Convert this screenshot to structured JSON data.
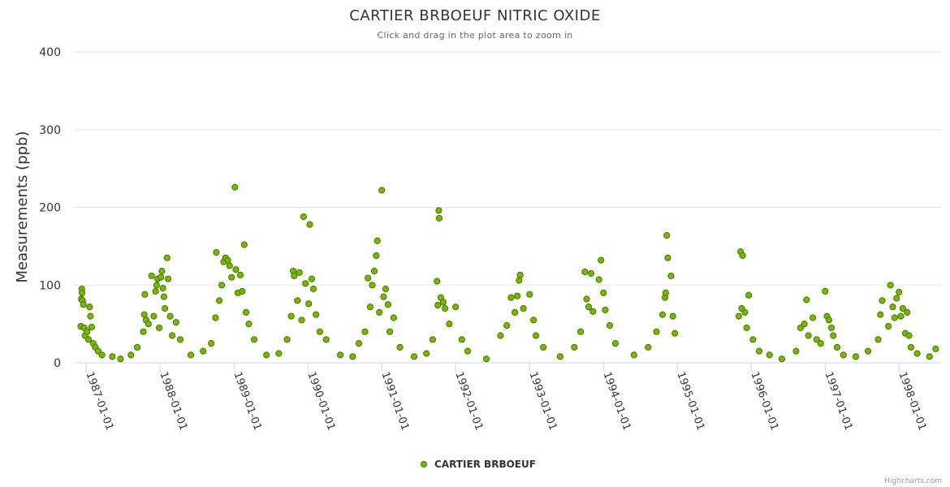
{
  "chart_data": {
    "type": "scatter",
    "title": "CARTIER BRBOEUF NITRIC OXIDE",
    "subtitle": "Click and drag in the plot area to zoom in",
    "ylabel": "Measurements (ppb)",
    "ylim": [
      0,
      400
    ],
    "yticks": [
      "0",
      "100",
      "200",
      "300",
      "400"
    ],
    "xlim": [
      "1986-11-01",
      "1998-08-01"
    ],
    "xticks": [
      "1987-01-01",
      "1988-01-01",
      "1989-01-01",
      "1990-01-01",
      "1991-01-01",
      "1992-01-01",
      "1993-01-01",
      "1994-01-01",
      "1995-01-01",
      "1996-01-01",
      "1997-01-01",
      "1998-01-01"
    ],
    "grid": true,
    "legend": "bottom-center",
    "credits": "Highcharts.com",
    "colors": {
      "marker_fill": "#7cb500",
      "marker_stroke": "#3f7a00"
    },
    "series": [
      {
        "name": "CARTIER BRBOEUF",
        "points": [
          [
            "1986-12-05",
            47
          ],
          [
            "1986-12-08",
            82
          ],
          [
            "1986-12-10",
            95
          ],
          [
            "1986-12-11",
            90
          ],
          [
            "1986-12-14",
            80
          ],
          [
            "1986-12-18",
            75
          ],
          [
            "1986-12-22",
            45
          ],
          [
            "1986-12-26",
            35
          ],
          [
            "1987-01-05",
            40
          ],
          [
            "1987-01-12",
            30
          ],
          [
            "1987-01-18",
            72
          ],
          [
            "1987-01-22",
            60
          ],
          [
            "1987-01-28",
            46
          ],
          [
            "1987-02-05",
            25
          ],
          [
            "1987-02-15",
            20
          ],
          [
            "1987-03-01",
            15
          ],
          [
            "1987-03-20",
            10
          ],
          [
            "1987-05-10",
            8
          ],
          [
            "1987-06-20",
            5
          ],
          [
            "1987-08-10",
            10
          ],
          [
            "1987-09-10",
            20
          ],
          [
            "1987-10-10",
            40
          ],
          [
            "1987-10-15",
            62
          ],
          [
            "1987-10-18",
            88
          ],
          [
            "1987-10-24",
            55
          ],
          [
            "1987-11-05",
            50
          ],
          [
            "1987-11-20",
            112
          ],
          [
            "1987-12-01",
            60
          ],
          [
            "1987-12-10",
            92
          ],
          [
            "1987-12-15",
            100
          ],
          [
            "1987-12-20",
            108
          ],
          [
            "1987-12-28",
            45
          ],
          [
            "1988-01-05",
            110
          ],
          [
            "1988-01-10",
            118
          ],
          [
            "1988-01-15",
            96
          ],
          [
            "1988-01-20",
            85
          ],
          [
            "1988-01-25",
            70
          ],
          [
            "1988-02-05",
            135
          ],
          [
            "1988-02-10",
            108
          ],
          [
            "1988-02-20",
            60
          ],
          [
            "1988-03-01",
            35
          ],
          [
            "1988-03-20",
            52
          ],
          [
            "1988-04-10",
            30
          ],
          [
            "1988-06-01",
            10
          ],
          [
            "1988-08-01",
            15
          ],
          [
            "1988-09-10",
            25
          ],
          [
            "1988-10-01",
            58
          ],
          [
            "1988-10-05",
            142
          ],
          [
            "1988-10-20",
            80
          ],
          [
            "1988-11-01",
            100
          ],
          [
            "1988-11-10",
            130
          ],
          [
            "1988-11-20",
            135
          ],
          [
            "1988-12-01",
            132
          ],
          [
            "1988-12-10",
            125
          ],
          [
            "1988-12-20",
            110
          ],
          [
            "1989-01-05",
            226
          ],
          [
            "1989-01-10",
            120
          ],
          [
            "1989-01-20",
            90
          ],
          [
            "1989-02-01",
            113
          ],
          [
            "1989-02-10",
            92
          ],
          [
            "1989-02-20",
            152
          ],
          [
            "1989-03-01",
            65
          ],
          [
            "1989-03-15",
            50
          ],
          [
            "1989-04-10",
            30
          ],
          [
            "1989-06-10",
            10
          ],
          [
            "1989-08-10",
            12
          ],
          [
            "1989-09-20",
            30
          ],
          [
            "1989-10-10",
            60
          ],
          [
            "1989-10-20",
            118
          ],
          [
            "1989-10-25",
            112
          ],
          [
            "1989-11-10",
            80
          ],
          [
            "1989-11-20",
            116
          ],
          [
            "1989-12-01",
            55
          ],
          [
            "1989-12-10",
            188
          ],
          [
            "1989-12-20",
            102
          ],
          [
            "1990-01-05",
            76
          ],
          [
            "1990-01-10",
            178
          ],
          [
            "1990-01-20",
            108
          ],
          [
            "1990-01-28",
            95
          ],
          [
            "1990-02-10",
            62
          ],
          [
            "1990-03-01",
            40
          ],
          [
            "1990-04-01",
            30
          ],
          [
            "1990-06-10",
            10
          ],
          [
            "1990-08-10",
            8
          ],
          [
            "1990-09-10",
            25
          ],
          [
            "1990-10-10",
            40
          ],
          [
            "1990-10-25",
            109
          ],
          [
            "1990-11-05",
            72
          ],
          [
            "1990-11-15",
            100
          ],
          [
            "1990-11-25",
            118
          ],
          [
            "1990-12-05",
            138
          ],
          [
            "1990-12-10",
            157
          ],
          [
            "1990-12-20",
            65
          ],
          [
            "1991-01-01",
            222
          ],
          [
            "1991-01-10",
            85
          ],
          [
            "1991-01-20",
            95
          ],
          [
            "1991-02-01",
            75
          ],
          [
            "1991-02-10",
            40
          ],
          [
            "1991-03-01",
            58
          ],
          [
            "1991-04-01",
            20
          ],
          [
            "1991-06-10",
            8
          ],
          [
            "1991-08-10",
            12
          ],
          [
            "1991-09-10",
            30
          ],
          [
            "1991-10-01",
            105
          ],
          [
            "1991-10-05",
            74
          ],
          [
            "1991-10-10",
            196
          ],
          [
            "1991-10-12",
            186
          ],
          [
            "1991-10-20",
            84
          ],
          [
            "1991-11-01",
            78
          ],
          [
            "1991-11-10",
            70
          ],
          [
            "1991-12-01",
            50
          ],
          [
            "1992-01-01",
            72
          ],
          [
            "1992-02-01",
            30
          ],
          [
            "1992-03-01",
            15
          ],
          [
            "1992-06-01",
            5
          ],
          [
            "1992-08-10",
            35
          ],
          [
            "1992-09-10",
            48
          ],
          [
            "1992-10-01",
            84
          ],
          [
            "1992-10-20",
            65
          ],
          [
            "1992-11-01",
            86
          ],
          [
            "1992-11-10",
            106
          ],
          [
            "1992-11-15",
            113
          ],
          [
            "1992-12-01",
            70
          ],
          [
            "1993-01-01",
            88
          ],
          [
            "1993-01-20",
            55
          ],
          [
            "1993-02-01",
            35
          ],
          [
            "1993-03-10",
            20
          ],
          [
            "1993-06-01",
            8
          ],
          [
            "1993-08-10",
            20
          ],
          [
            "1993-09-10",
            40
          ],
          [
            "1993-10-01",
            117
          ],
          [
            "1993-10-10",
            82
          ],
          [
            "1993-10-20",
            72
          ],
          [
            "1993-11-01",
            115
          ],
          [
            "1993-11-10",
            66
          ],
          [
            "1993-12-10",
            107
          ],
          [
            "1993-12-20",
            132
          ],
          [
            "1994-01-01",
            90
          ],
          [
            "1994-01-10",
            68
          ],
          [
            "1994-02-01",
            48
          ],
          [
            "1994-03-01",
            25
          ],
          [
            "1994-06-01",
            10
          ],
          [
            "1994-08-10",
            20
          ],
          [
            "1994-09-20",
            40
          ],
          [
            "1994-10-20",
            62
          ],
          [
            "1994-11-01",
            84
          ],
          [
            "1994-11-05",
            90
          ],
          [
            "1994-11-10",
            164
          ],
          [
            "1994-11-15",
            135
          ],
          [
            "1994-12-01",
            112
          ],
          [
            "1994-12-10",
            60
          ],
          [
            "1994-12-20",
            38
          ],
          [
            "1995-11-01",
            60
          ],
          [
            "1995-11-10",
            143
          ],
          [
            "1995-11-15",
            70
          ],
          [
            "1995-11-20",
            138
          ],
          [
            "1995-12-01",
            65
          ],
          [
            "1995-12-10",
            45
          ],
          [
            "1995-12-20",
            87
          ],
          [
            "1996-01-10",
            30
          ],
          [
            "1996-02-10",
            15
          ],
          [
            "1996-04-01",
            10
          ],
          [
            "1996-06-01",
            5
          ],
          [
            "1996-08-10",
            15
          ],
          [
            "1996-09-01",
            45
          ],
          [
            "1996-09-20",
            50
          ],
          [
            "1996-10-01",
            81
          ],
          [
            "1996-10-10",
            35
          ],
          [
            "1996-11-01",
            58
          ],
          [
            "1996-11-20",
            30
          ],
          [
            "1996-12-10",
            25
          ],
          [
            "1997-01-01",
            92
          ],
          [
            "1997-01-10",
            60
          ],
          [
            "1997-01-20",
            55
          ],
          [
            "1997-02-01",
            45
          ],
          [
            "1997-02-10",
            35
          ],
          [
            "1997-03-01",
            20
          ],
          [
            "1997-04-01",
            10
          ],
          [
            "1997-06-01",
            8
          ],
          [
            "1997-08-01",
            15
          ],
          [
            "1997-09-20",
            30
          ],
          [
            "1997-10-01",
            62
          ],
          [
            "1997-10-10",
            80
          ],
          [
            "1997-11-10",
            47
          ],
          [
            "1997-11-20",
            100
          ],
          [
            "1997-12-01",
            72
          ],
          [
            "1997-12-10",
            58
          ],
          [
            "1997-12-20",
            83
          ],
          [
            "1998-01-01",
            91
          ],
          [
            "1998-01-10",
            60
          ],
          [
            "1998-01-20",
            70
          ],
          [
            "1998-02-01",
            38
          ],
          [
            "1998-02-10",
            65
          ],
          [
            "1998-02-20",
            35
          ],
          [
            "1998-03-01",
            20
          ],
          [
            "1998-04-01",
            12
          ],
          [
            "1998-06-01",
            8
          ],
          [
            "1998-07-01",
            18
          ]
        ]
      }
    ]
  }
}
